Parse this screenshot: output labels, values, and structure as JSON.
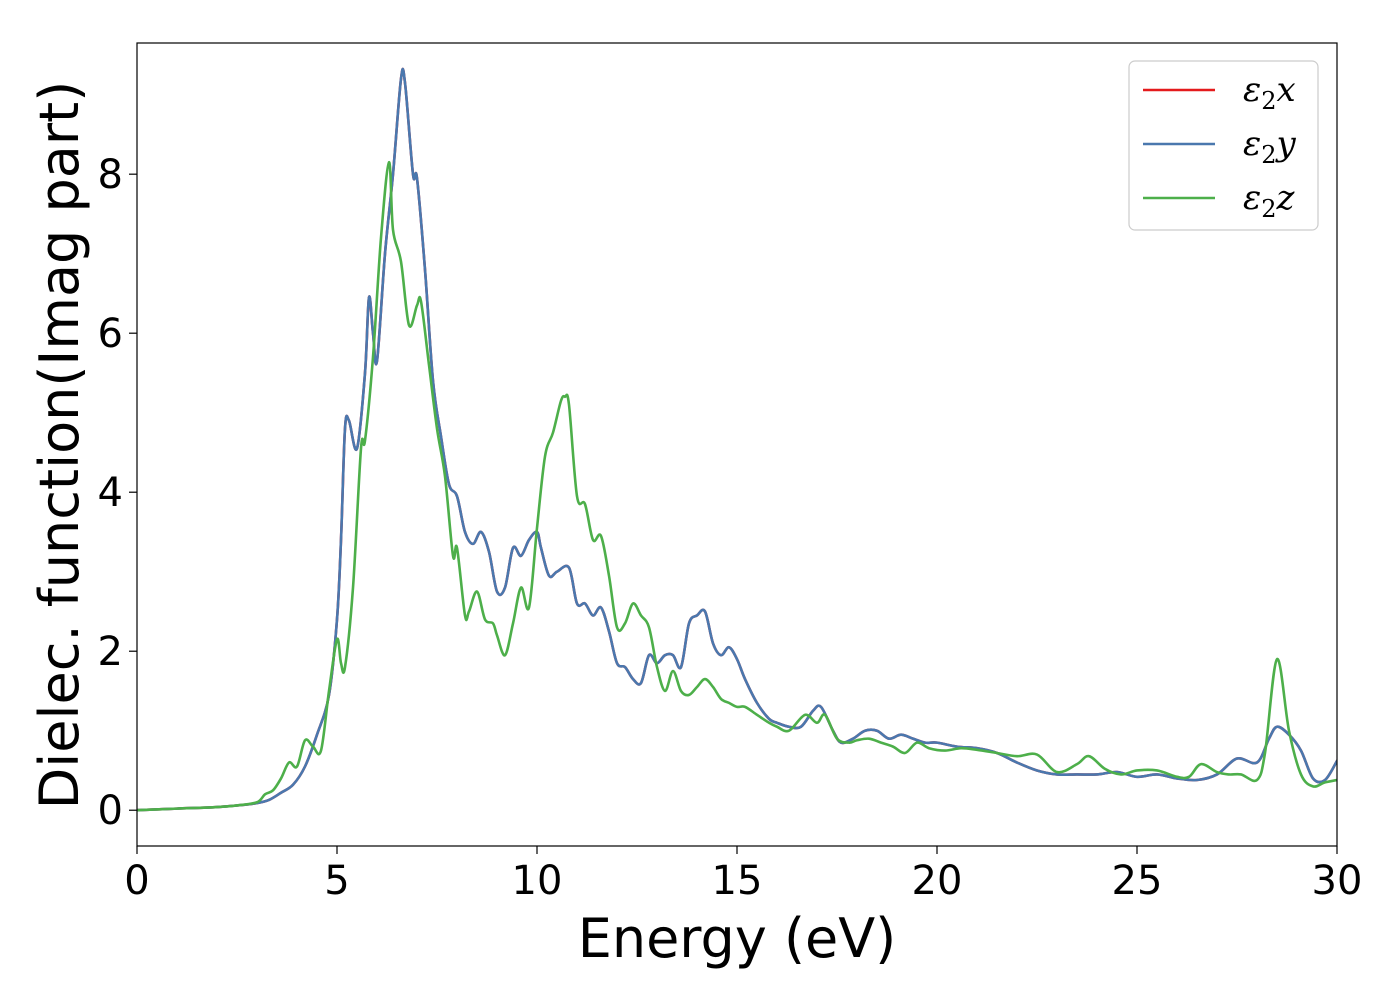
{
  "chart_data": {
    "type": "line",
    "title": "",
    "xlabel": "Energy (eV)",
    "ylabel": "Dielec. function(Imag part)",
    "xlim": [
      0,
      30
    ],
    "ylim": [
      -0.45,
      9.65
    ],
    "xticks": [
      0,
      5,
      10,
      15,
      20,
      25,
      30
    ],
    "yticks": [
      0,
      2,
      4,
      6,
      8
    ],
    "grid": false,
    "legend_position": "top-right",
    "series": [
      {
        "name": "ε2x",
        "legend_symbol": "ε",
        "legend_sub": "2",
        "legend_var": "x",
        "color": "#e41a1c",
        "x": [
          0,
          1,
          2,
          2.5,
          3,
          3.3,
          3.6,
          3.9,
          4.2,
          4.5,
          4.8,
          5.0,
          5.1,
          5.2,
          5.3,
          5.5,
          5.7,
          5.8,
          5.9,
          6.0,
          6.2,
          6.4,
          6.6,
          6.7,
          6.9,
          7.0,
          7.2,
          7.4,
          7.6,
          7.8,
          8.0,
          8.2,
          8.4,
          8.6,
          8.8,
          9.0,
          9.2,
          9.4,
          9.6,
          9.8,
          10.0,
          10.1,
          10.3,
          10.5,
          10.8,
          11.0,
          11.2,
          11.4,
          11.6,
          11.8,
          12.0,
          12.2,
          12.4,
          12.6,
          12.8,
          13.0,
          13.2,
          13.4,
          13.6,
          13.8,
          14.0,
          14.2,
          14.4,
          14.6,
          14.8,
          15.0,
          15.2,
          15.5,
          15.8,
          16.0,
          16.3,
          16.6,
          16.9,
          17.1,
          17.4,
          17.6,
          17.9,
          18.2,
          18.5,
          18.8,
          19.1,
          19.4,
          19.7,
          20.0,
          20.5,
          21.0,
          21.5,
          22.0,
          22.5,
          23.0,
          23.5,
          24.0,
          24.5,
          25.0,
          25.5,
          26.0,
          26.5,
          27.0,
          27.5,
          28.0,
          28.3,
          28.5,
          28.8,
          29.1,
          29.4,
          29.7,
          30.0
        ],
        "y": [
          0,
          0.02,
          0.04,
          0.06,
          0.09,
          0.13,
          0.22,
          0.32,
          0.55,
          0.95,
          1.45,
          2.4,
          3.4,
          4.8,
          4.9,
          4.55,
          5.5,
          6.45,
          6.0,
          5.65,
          7.0,
          8.0,
          9.2,
          9.15,
          8.0,
          7.95,
          6.8,
          5.4,
          4.7,
          4.1,
          3.95,
          3.5,
          3.35,
          3.5,
          3.25,
          2.75,
          2.8,
          3.3,
          3.2,
          3.4,
          3.5,
          3.3,
          2.95,
          3.0,
          3.05,
          2.6,
          2.6,
          2.45,
          2.55,
          2.25,
          1.85,
          1.8,
          1.65,
          1.6,
          1.95,
          1.85,
          1.95,
          1.95,
          1.8,
          2.35,
          2.45,
          2.5,
          2.1,
          1.95,
          2.05,
          1.9,
          1.65,
          1.35,
          1.15,
          1.1,
          1.05,
          1.05,
          1.25,
          1.3,
          1.0,
          0.85,
          0.9,
          1.0,
          1.0,
          0.9,
          0.95,
          0.9,
          0.85,
          0.85,
          0.8,
          0.78,
          0.72,
          0.6,
          0.5,
          0.45,
          0.45,
          0.45,
          0.48,
          0.42,
          0.45,
          0.4,
          0.38,
          0.45,
          0.65,
          0.6,
          0.9,
          1.05,
          0.95,
          0.75,
          0.4,
          0.38,
          0.62
        ]
      },
      {
        "name": "ε2y",
        "legend_symbol": "ε",
        "legend_sub": "2",
        "legend_var": "y",
        "color": "#4a78ae",
        "x": [
          0,
          1,
          2,
          2.5,
          3,
          3.3,
          3.6,
          3.9,
          4.2,
          4.5,
          4.8,
          5.0,
          5.1,
          5.2,
          5.3,
          5.5,
          5.7,
          5.8,
          5.9,
          6.0,
          6.2,
          6.4,
          6.6,
          6.7,
          6.9,
          7.0,
          7.2,
          7.4,
          7.6,
          7.8,
          8.0,
          8.2,
          8.4,
          8.6,
          8.8,
          9.0,
          9.2,
          9.4,
          9.6,
          9.8,
          10.0,
          10.1,
          10.3,
          10.5,
          10.8,
          11.0,
          11.2,
          11.4,
          11.6,
          11.8,
          12.0,
          12.2,
          12.4,
          12.6,
          12.8,
          13.0,
          13.2,
          13.4,
          13.6,
          13.8,
          14.0,
          14.2,
          14.4,
          14.6,
          14.8,
          15.0,
          15.2,
          15.5,
          15.8,
          16.0,
          16.3,
          16.6,
          16.9,
          17.1,
          17.4,
          17.6,
          17.9,
          18.2,
          18.5,
          18.8,
          19.1,
          19.4,
          19.7,
          20.0,
          20.5,
          21.0,
          21.5,
          22.0,
          22.5,
          23.0,
          23.5,
          24.0,
          24.5,
          25.0,
          25.5,
          26.0,
          26.5,
          27.0,
          27.5,
          28.0,
          28.3,
          28.5,
          28.8,
          29.1,
          29.4,
          29.7,
          30.0
        ],
        "y": [
          0,
          0.02,
          0.04,
          0.06,
          0.09,
          0.13,
          0.22,
          0.32,
          0.55,
          0.95,
          1.45,
          2.4,
          3.4,
          4.8,
          4.9,
          4.55,
          5.5,
          6.45,
          6.0,
          5.65,
          7.0,
          8.0,
          9.2,
          9.15,
          8.0,
          7.95,
          6.8,
          5.4,
          4.7,
          4.1,
          3.95,
          3.5,
          3.35,
          3.5,
          3.25,
          2.75,
          2.8,
          3.3,
          3.2,
          3.4,
          3.5,
          3.3,
          2.95,
          3.0,
          3.05,
          2.6,
          2.6,
          2.45,
          2.55,
          2.25,
          1.85,
          1.8,
          1.65,
          1.6,
          1.95,
          1.85,
          1.95,
          1.95,
          1.8,
          2.35,
          2.45,
          2.5,
          2.1,
          1.95,
          2.05,
          1.9,
          1.65,
          1.35,
          1.15,
          1.1,
          1.05,
          1.05,
          1.25,
          1.3,
          1.0,
          0.85,
          0.9,
          1.0,
          1.0,
          0.9,
          0.95,
          0.9,
          0.85,
          0.85,
          0.8,
          0.78,
          0.72,
          0.6,
          0.5,
          0.45,
          0.45,
          0.45,
          0.48,
          0.42,
          0.45,
          0.4,
          0.38,
          0.45,
          0.65,
          0.6,
          0.9,
          1.05,
          0.95,
          0.75,
          0.4,
          0.38,
          0.62
        ]
      },
      {
        "name": "ε2z",
        "legend_symbol": "ε",
        "legend_sub": "2",
        "legend_var": "z",
        "color": "#4daf4a",
        "x": [
          0,
          1,
          2,
          2.5,
          3,
          3.2,
          3.4,
          3.6,
          3.8,
          4.0,
          4.2,
          4.4,
          4.6,
          4.8,
          5.0,
          5.1,
          5.2,
          5.4,
          5.6,
          5.7,
          5.9,
          6.1,
          6.3,
          6.4,
          6.6,
          6.8,
          7.0,
          7.1,
          7.3,
          7.5,
          7.7,
          7.9,
          8.0,
          8.2,
          8.3,
          8.5,
          8.7,
          8.9,
          9.0,
          9.2,
          9.4,
          9.6,
          9.8,
          10.0,
          10.2,
          10.4,
          10.6,
          10.7,
          10.8,
          11.0,
          11.2,
          11.4,
          11.6,
          11.8,
          12.0,
          12.2,
          12.4,
          12.6,
          12.8,
          13.0,
          13.2,
          13.4,
          13.6,
          13.8,
          14.0,
          14.2,
          14.4,
          14.6,
          14.8,
          15.0,
          15.2,
          15.5,
          15.8,
          16.0,
          16.3,
          16.7,
          17.0,
          17.2,
          17.5,
          17.8,
          18.0,
          18.3,
          18.6,
          18.9,
          19.2,
          19.5,
          19.8,
          20.2,
          20.6,
          21.0,
          21.5,
          22.0,
          22.5,
          23.0,
          23.5,
          23.8,
          24.2,
          24.6,
          25.0,
          25.5,
          26.0,
          26.3,
          26.6,
          27.0,
          27.3,
          27.6,
          28.0,
          28.2,
          28.5,
          28.8,
          29.1,
          29.4,
          29.7,
          30.0
        ],
        "y": [
          0,
          0.02,
          0.04,
          0.06,
          0.1,
          0.2,
          0.25,
          0.4,
          0.6,
          0.55,
          0.88,
          0.8,
          0.75,
          1.5,
          2.15,
          1.85,
          1.8,
          2.8,
          4.55,
          4.65,
          5.7,
          7.2,
          8.15,
          7.3,
          6.9,
          6.1,
          6.35,
          6.4,
          5.6,
          4.8,
          4.2,
          3.2,
          3.3,
          2.45,
          2.5,
          2.75,
          2.4,
          2.35,
          2.2,
          1.95,
          2.35,
          2.8,
          2.55,
          3.55,
          4.45,
          4.75,
          5.15,
          5.2,
          5.1,
          3.95,
          3.85,
          3.4,
          3.45,
          2.95,
          2.3,
          2.35,
          2.6,
          2.45,
          2.3,
          1.8,
          1.5,
          1.75,
          1.5,
          1.45,
          1.55,
          1.65,
          1.55,
          1.4,
          1.35,
          1.3,
          1.3,
          1.2,
          1.1,
          1.05,
          1.0,
          1.2,
          1.1,
          1.2,
          0.9,
          0.85,
          0.88,
          0.9,
          0.85,
          0.8,
          0.72,
          0.85,
          0.78,
          0.75,
          0.78,
          0.76,
          0.72,
          0.68,
          0.7,
          0.48,
          0.58,
          0.68,
          0.52,
          0.45,
          0.5,
          0.5,
          0.42,
          0.42,
          0.58,
          0.48,
          0.45,
          0.45,
          0.38,
          0.72,
          1.9,
          1.0,
          0.45,
          0.3,
          0.35,
          0.38
        ]
      }
    ]
  }
}
